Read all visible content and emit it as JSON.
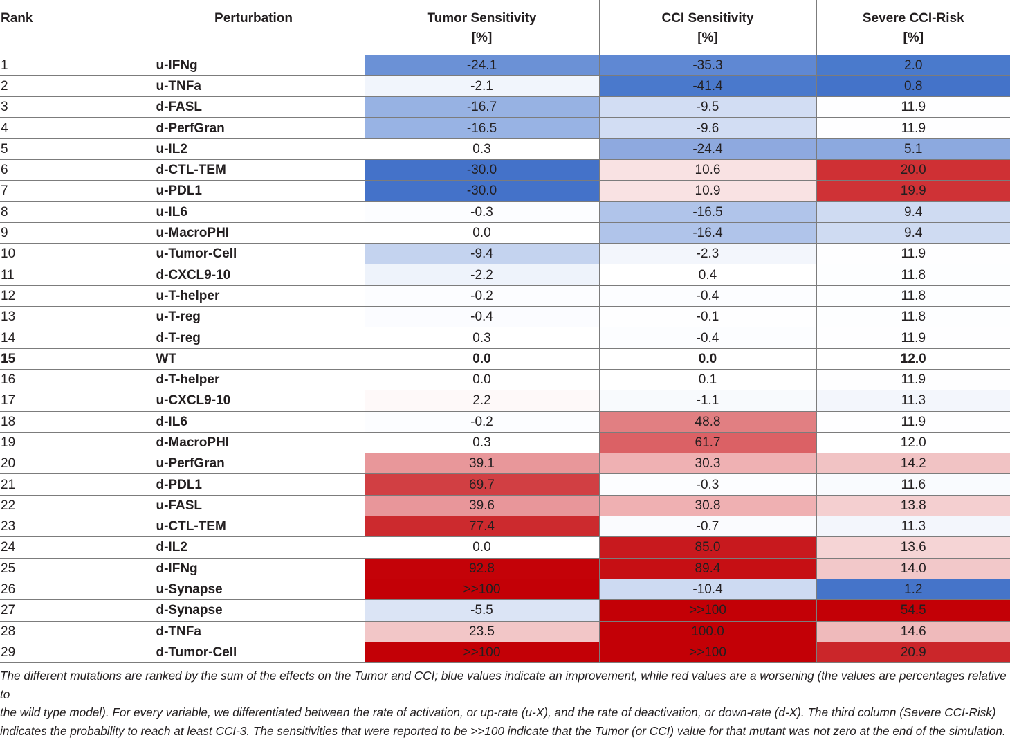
{
  "table": {
    "headers": [
      {
        "line1": "Rank",
        "line2": ""
      },
      {
        "line1": "Perturbation",
        "line2": ""
      },
      {
        "line1": "Tumor Sensitivity",
        "line2": "[%]"
      },
      {
        "line1": "CCI Sensitivity",
        "line2": "[%]"
      },
      {
        "line1": "Severe CCI-Risk",
        "line2": "[%]"
      }
    ],
    "rows": [
      {
        "rank": "1",
        "pert": "u-IFNg",
        "tumor": "-24.1",
        "cci": "-35.3",
        "risk": "2.0",
        "tumor_color": "#6b91d6",
        "cci_color": "#5f88d3",
        "risk_color": "#4a7acc"
      },
      {
        "rank": "2",
        "pert": "u-TNFa",
        "tumor": "-2.1",
        "cci": "-41.4",
        "risk": "0.8",
        "tumor_color": "#f1f5fc",
        "cci_color": "#4a79cc",
        "risk_color": "#4473c9"
      },
      {
        "rank": "3",
        "pert": "d-FASL",
        "tumor": "-16.7",
        "cci": "-9.5",
        "risk": "11.9",
        "tumor_color": "#97b2e3",
        "cci_color": "#d2ddf3",
        "risk_color": "#fefeff"
      },
      {
        "rank": "4",
        "pert": "d-PerfGran",
        "tumor": "-16.5",
        "cci": "-9.6",
        "risk": "11.9",
        "tumor_color": "#98b3e4",
        "cci_color": "#d2ddf3",
        "risk_color": "#fefeff"
      },
      {
        "rank": "5",
        "pert": "u-IL2",
        "tumor": "0.3",
        "cci": "-24.4",
        "risk": "5.1",
        "tumor_color": "#ffffff",
        "cci_color": "#8ea9df",
        "risk_color": "#8ca9df"
      },
      {
        "rank": "6",
        "pert": "d-CTL-TEM",
        "tumor": "-30.0",
        "cci": "10.6",
        "risk": "20.0",
        "tumor_color": "#4472c9",
        "cci_color": "#f9e2e3",
        "risk_color": "#cf3034"
      },
      {
        "rank": "7",
        "pert": "u-PDL1",
        "tumor": "-30.0",
        "cci": "10.9",
        "risk": "19.9",
        "tumor_color": "#4472c9",
        "cci_color": "#f9e2e3",
        "risk_color": "#cf3236"
      },
      {
        "rank": "8",
        "pert": "u-IL6",
        "tumor": "-0.3",
        "cci": "-16.5",
        "risk": "9.4",
        "tumor_color": "#fcfdff",
        "cci_color": "#b0c4ea",
        "risk_color": "#cfdbf2"
      },
      {
        "rank": "9",
        "pert": "u-MacroPHI",
        "tumor": "0.0",
        "cci": "-16.4",
        "risk": "9.4",
        "tumor_color": "#ffffff",
        "cci_color": "#b0c4ea",
        "risk_color": "#cfdbf2"
      },
      {
        "rank": "10",
        "pert": "u-Tumor-Cell",
        "tumor": "-9.4",
        "cci": "-2.3",
        "risk": "11.9",
        "tumor_color": "#c4d3ef",
        "cci_color": "#f3f6fc",
        "risk_color": "#fefeff"
      },
      {
        "rank": "11",
        "pert": "d-CXCL9-10",
        "tumor": "-2.2",
        "cci": "0.4",
        "risk": "11.8",
        "tumor_color": "#eef3fb",
        "cci_color": "#ffffff",
        "risk_color": "#fdfeff"
      },
      {
        "rank": "12",
        "pert": "u-T-helper",
        "tumor": "-0.2",
        "cci": "-0.4",
        "risk": "11.8",
        "tumor_color": "#fcfdff",
        "cci_color": "#fcfdff",
        "risk_color": "#fdfeff"
      },
      {
        "rank": "13",
        "pert": "u-T-reg",
        "tumor": "-0.4",
        "cci": "-0.1",
        "risk": "11.8",
        "tumor_color": "#fbfcff",
        "cci_color": "#fefeff",
        "risk_color": "#fdfeff"
      },
      {
        "rank": "14",
        "pert": "d-T-reg",
        "tumor": "0.3",
        "cci": "-0.4",
        "risk": "11.9",
        "tumor_color": "#ffffff",
        "cci_color": "#fcfdff",
        "risk_color": "#fefeff"
      },
      {
        "rank": "15",
        "pert": "WT",
        "tumor": "0.0",
        "cci": "0.0",
        "risk": "12.0",
        "tumor_color": "#ffffff",
        "cci_color": "#ffffff",
        "risk_color": "#ffffff",
        "bold": true
      },
      {
        "rank": "16",
        "pert": "d-T-helper",
        "tumor": "0.0",
        "cci": "0.1",
        "risk": "11.9",
        "tumor_color": "#ffffff",
        "cci_color": "#ffffff",
        "risk_color": "#fefeff"
      },
      {
        "rank": "17",
        "pert": "u-CXCL9-10",
        "tumor": "2.2",
        "cci": "-1.1",
        "risk": "11.3",
        "tumor_color": "#fef9f9",
        "cci_color": "#f8fafd",
        "risk_color": "#f3f6fc"
      },
      {
        "rank": "18",
        "pert": "d-IL6",
        "tumor": "-0.2",
        "cci": "48.8",
        "risk": "11.9",
        "tumor_color": "#fcfdff",
        "cci_color": "#e17f82",
        "risk_color": "#fefeff"
      },
      {
        "rank": "19",
        "pert": "d-MacroPHI",
        "tumor": "0.3",
        "cci": "61.7",
        "risk": "12.0",
        "tumor_color": "#ffffff",
        "cci_color": "#db6165",
        "risk_color": "#ffffff"
      },
      {
        "rank": "20",
        "pert": "u-PerfGran",
        "tumor": "39.1",
        "cci": "30.3",
        "risk": "14.2",
        "tumor_color": "#e8979a",
        "cci_color": "#efb1b3",
        "risk_color": "#f1c3c4"
      },
      {
        "rank": "21",
        "pert": "d-PDL1",
        "tumor": "69.7",
        "cci": "-0.3",
        "risk": "11.6",
        "tumor_color": "#d13f43",
        "cci_color": "#fcfdff",
        "risk_color": "#f9fbfe"
      },
      {
        "rank": "22",
        "pert": "u-FASL",
        "tumor": "39.6",
        "cci": "30.8",
        "risk": "13.8",
        "tumor_color": "#e8969a",
        "cci_color": "#efb0b2",
        "risk_color": "#f4cfd0"
      },
      {
        "rank": "23",
        "pert": "u-CTL-TEM",
        "tumor": "77.4",
        "cci": "-0.7",
        "risk": "11.3",
        "tumor_color": "#cc2a2e",
        "cci_color": "#fafbfe",
        "risk_color": "#f3f6fc"
      },
      {
        "rank": "24",
        "pert": "d-IL2",
        "tumor": "0.0",
        "cci": "85.0",
        "risk": "13.6",
        "tumor_color": "#ffffff",
        "cci_color": "#c8191e",
        "risk_color": "#f5d4d5"
      },
      {
        "rank": "25",
        "pert": "d-IFNg",
        "tumor": "92.8",
        "cci": "89.4",
        "risk": "14.0",
        "tumor_color": "#c40208",
        "cci_color": "#c60f14",
        "risk_color": "#f2c8c9"
      },
      {
        "rank": "26",
        "pert": "u-Synapse",
        "tumor": ">>100",
        "cci": "-10.4",
        "risk": "1.2",
        "tumor_color": "#c30006",
        "cci_color": "#cddaf2",
        "risk_color": "#4574c9"
      },
      {
        "rank": "27",
        "pert": "d-Synapse",
        "tumor": "-5.5",
        "cci": ">>100",
        "risk": "54.5",
        "tumor_color": "#dbe4f5",
        "cci_color": "#c30006",
        "risk_color": "#c30006"
      },
      {
        "rank": "28",
        "pert": "d-TNFa",
        "tumor": "23.5",
        "cci": "100.0",
        "risk": "14.6",
        "tumor_color": "#f2c6c7",
        "cci_color": "#c30006",
        "risk_color": "#efbabb"
      },
      {
        "rank": "29",
        "pert": "d-Tumor-Cell",
        "tumor": ">>100",
        "cci": ">>100",
        "risk": "20.9",
        "tumor_color": "#c30006",
        "cci_color": "#c30006",
        "risk_color": "#cb262a"
      }
    ]
  },
  "caption": {
    "lines": [
      "The different mutations are ranked by the sum of the effects on the Tumor and CCI; blue values indicate an improvement, while red values are a worsening (the values are percentages relative to",
      "the wild type model). For every variable, we differentiated between the rate of activation, or up-rate (u-X), and the rate of deactivation, or down-rate (d-X). The third column (Severe CCI-Risk)",
      "indicates the probability to reach at least CCI-3. The sensitivities that were reported to be >>100 indicate that the Tumor (or CCI) value for that mutant was not zero at the end of the simulation."
    ]
  }
}
